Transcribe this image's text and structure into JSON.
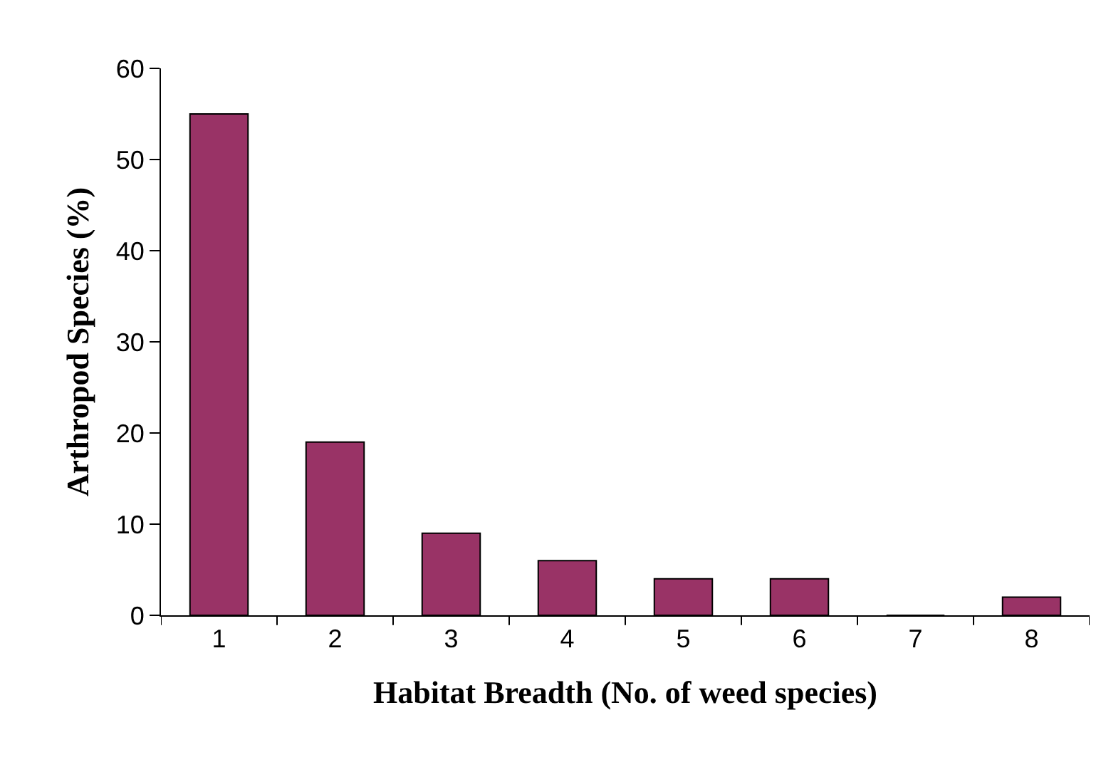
{
  "chart_data": {
    "type": "bar",
    "xlabel": "Habitat Breadth (No. of weed species)",
    "ylabel": "Arthropod Species (%)",
    "categories": [
      "1",
      "2",
      "3",
      "4",
      "5",
      "6",
      "7",
      "8"
    ],
    "values": [
      55,
      19,
      9,
      6,
      4,
      4,
      0,
      2
    ],
    "color": "#993366",
    "ylim": [
      0,
      60
    ],
    "yticks": [
      0,
      10,
      20,
      30,
      40,
      50,
      60
    ],
    "grid": false
  }
}
